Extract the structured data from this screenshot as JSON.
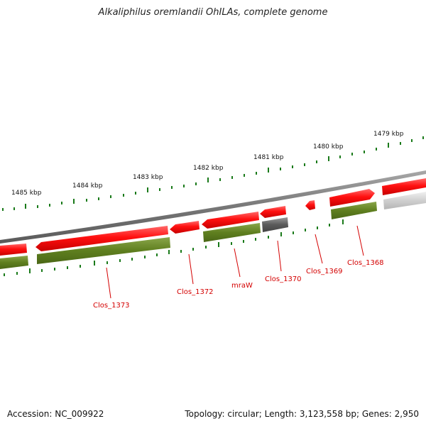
{
  "title": "Alkaliphilus oremlandii OhILAs, complete genome",
  "footer": {
    "accession": "Accession: NC_009922",
    "summary": "Topology: circular; Length: 3,123,558 bp; Genes: 2,950"
  },
  "kbp_labels": [
    "1485 kbp",
    "1484 kbp",
    "1483 kbp",
    "1482 kbp",
    "1481 kbp",
    "1480 kbp",
    "1479 kbp"
  ],
  "gene_labels": [
    "Clos_1373",
    "Clos_1372",
    "mraW",
    "Clos_1370",
    "Clos_1369",
    "Clos_1368"
  ],
  "colors": {
    "cds_red": "#ff1010",
    "gene_green": "#5f7f1f",
    "gene_gray": "#5a5a5a",
    "backbone_gray": "#777777",
    "tick_green": "#1a7a1a",
    "label_red": "#d40000"
  }
}
